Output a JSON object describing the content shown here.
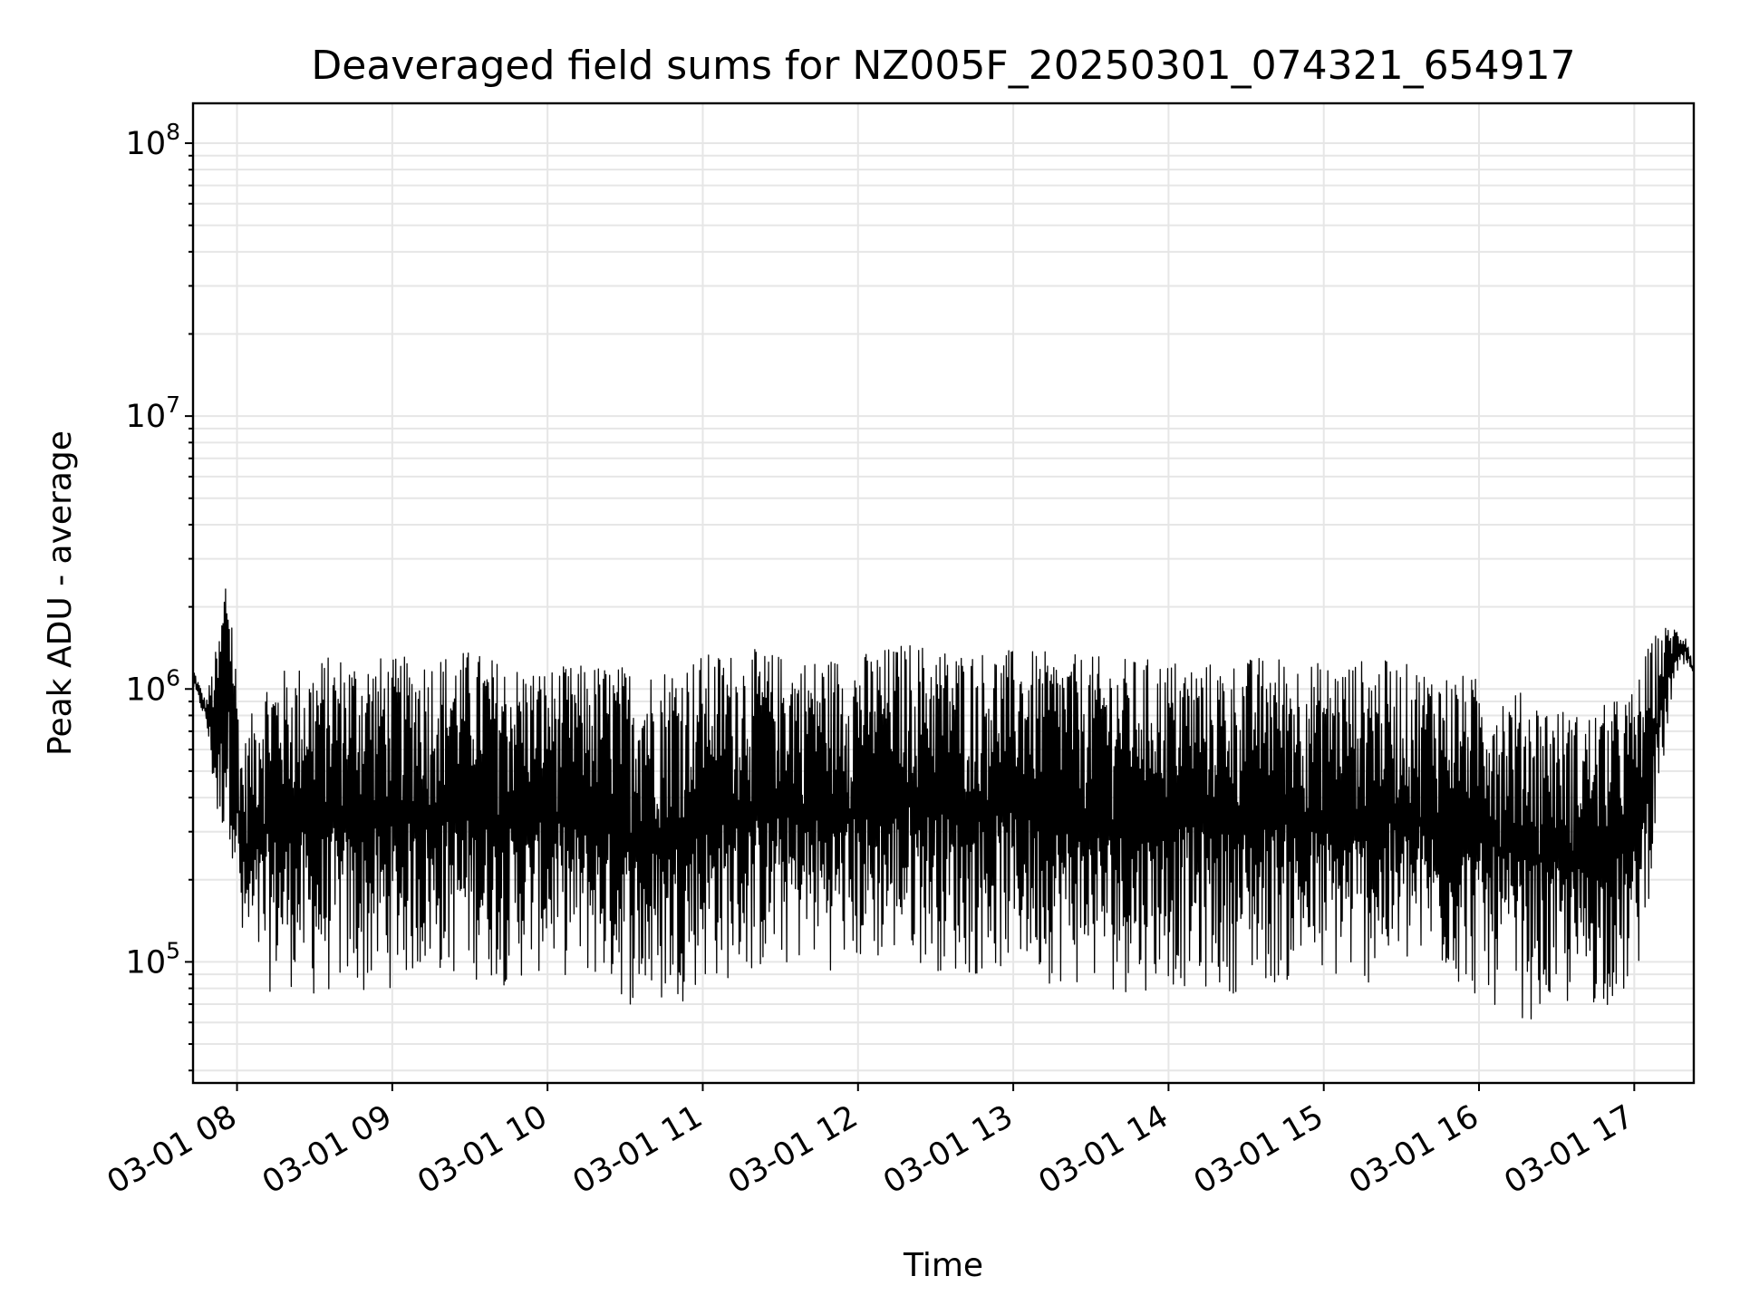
{
  "chart_data": {
    "type": "line",
    "title": "Deaveraged field sums for NZ005F_20250301_074321_654917",
    "xlabel": "Time",
    "ylabel": "Peak ADU - average",
    "x_tick_labels": [
      "03-01 08",
      "03-01 09",
      "03-01 10",
      "03-01 11",
      "03-01 12",
      "03-01 13",
      "03-01 14",
      "03-01 15",
      "03-01 16",
      "03-01 17"
    ],
    "x_ticks": [
      "2025-03-01 08:00",
      "2025-03-01 09:00",
      "2025-03-01 10:00",
      "2025-03-01 11:00",
      "2025-03-01 12:00",
      "2025-03-01 13:00",
      "2025-03-01 14:00",
      "2025-03-01 15:00",
      "2025-03-01 16:00",
      "2025-03-01 17:00"
    ],
    "xlim": [
      "2025-03-01 07:43",
      "2025-03-01 17:23"
    ],
    "y_scale": "log",
    "ylim": [
      36000,
      140000000
    ],
    "y_ticks": [
      {
        "value": 100000,
        "base": "10",
        "exp": "5"
      },
      {
        "value": 1000000,
        "base": "10",
        "exp": "6"
      },
      {
        "value": 10000000,
        "base": "10",
        "exp": "7"
      },
      {
        "value": 100000000,
        "base": "10",
        "exp": "8"
      }
    ],
    "grid": true,
    "series_color": "#000000",
    "series": [
      {
        "x": [
          "2025-03-01 07:43",
          "2025-03-01 07:48",
          "2025-03-01 07:53",
          "2025-03-01 07:56",
          "2025-03-01 07:58",
          "2025-03-01 08:02",
          "2025-03-01 08:10",
          "2025-03-01 08:20",
          "2025-03-01 08:30",
          "2025-03-01 08:40",
          "2025-03-01 08:50",
          "2025-03-01 09:00",
          "2025-03-01 09:15",
          "2025-03-01 09:30",
          "2025-03-01 09:45",
          "2025-03-01 10:00",
          "2025-03-01 10:20",
          "2025-03-01 10:40",
          "2025-03-01 11:00",
          "2025-03-01 11:20",
          "2025-03-01 11:40",
          "2025-03-01 12:00",
          "2025-03-01 12:20",
          "2025-03-01 12:40",
          "2025-03-01 13:00",
          "2025-03-01 13:20",
          "2025-03-01 13:40",
          "2025-03-01 14:00",
          "2025-03-01 14:20",
          "2025-03-01 14:40",
          "2025-03-01 15:00",
          "2025-03-01 15:20",
          "2025-03-01 15:40",
          "2025-03-01 16:00",
          "2025-03-01 16:20",
          "2025-03-01 16:40",
          "2025-03-01 17:00",
          "2025-03-01 17:05",
          "2025-03-01 17:10",
          "2025-03-01 17:15",
          "2025-03-01 17:20",
          "2025-03-01 17:23"
        ],
        "upper": [
          1200000,
          900000,
          1600000,
          3200000,
          2100000,
          600000,
          1150000,
          1200000,
          1300000,
          1350000,
          1350000,
          1300000,
          1350000,
          1400000,
          1250000,
          1200000,
          1250000,
          1200000,
          1350000,
          1400000,
          1300000,
          1350000,
          1500000,
          1400000,
          1400000,
          1350000,
          1300000,
          1300000,
          1250000,
          1350000,
          1250000,
          1300000,
          1200000,
          1100000,
          950000,
          800000,
          1000000,
          1400000,
          1700000,
          1700000,
          1600000,
          1200000
        ],
        "lower": [
          1000000,
          750000,
          250000,
          300000,
          250000,
          95000,
          75000,
          80000,
          70000,
          75000,
          70000,
          80000,
          85000,
          85000,
          80000,
          90000,
          80000,
          60000,
          80000,
          85000,
          95000,
          90000,
          100000,
          85000,
          90000,
          80000,
          75000,
          80000,
          75000,
          80000,
          80000,
          80000,
          90000,
          70000,
          60000,
          65000,
          70000,
          150000,
          400000,
          1000000,
          1200000,
          1100000
        ]
      }
    ]
  }
}
